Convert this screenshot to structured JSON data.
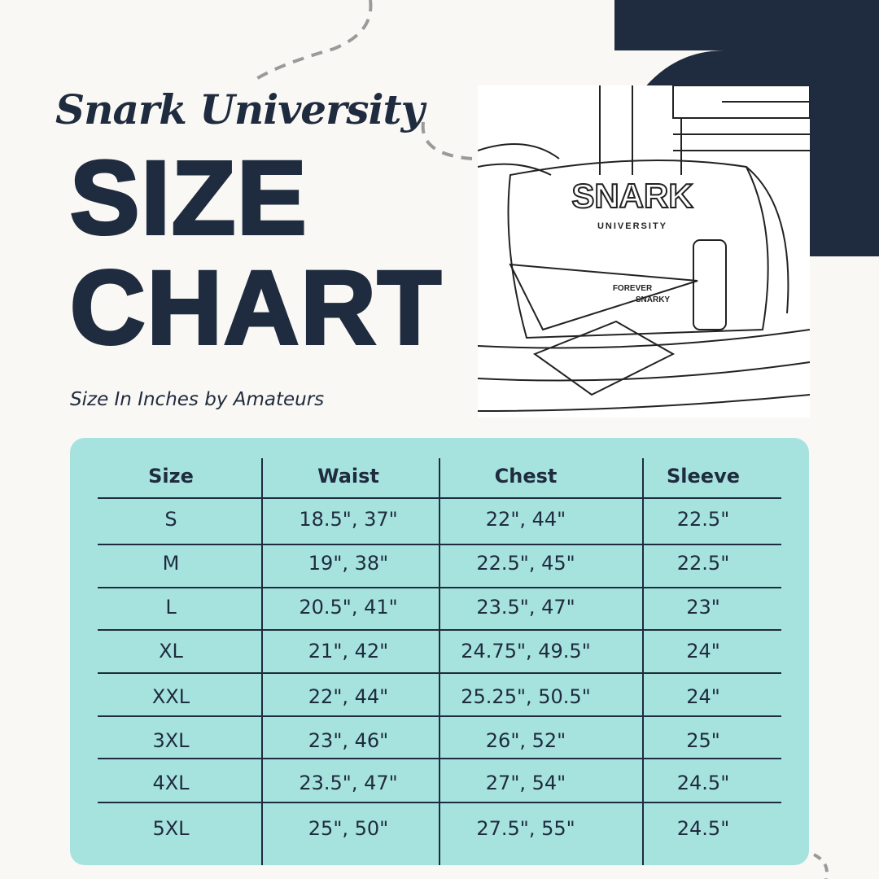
{
  "header": {
    "brand": "Snark University",
    "title_line1": "SIZE",
    "title_line2": "CHART",
    "subtitle": "Size In Inches by Amateurs"
  },
  "illustration": {
    "shirt_line1": "SNARK",
    "shirt_line2": "UNIVERSITY",
    "pennant_line1": "FOREVER",
    "pennant_line2": "SNARKY"
  },
  "table": {
    "columns": [
      "Size",
      "Waist",
      "Chest",
      "Sleeve"
    ],
    "rows": [
      [
        "S",
        "18.5\", 37\"",
        "22\", 44\"",
        "22.5\""
      ],
      [
        "M",
        "19\", 38\"",
        "22.5\", 45\"",
        "22.5\""
      ],
      [
        "L",
        "20.5\", 41\"",
        "23.5\", 47\"",
        "23\""
      ],
      [
        "XL",
        "21\", 42\"",
        "24.75\", 49.5\"",
        "24\""
      ],
      [
        "XXL",
        "22\", 44\"",
        "25.25\", 50.5\"",
        "24\""
      ],
      [
        "3XL",
        "23\", 46\"",
        "26\", 52\"",
        "25\""
      ],
      [
        "4XL",
        "23.5\", 47\"",
        "27\", 54\"",
        "24.5\""
      ],
      [
        "5XL",
        "25\", 50\"",
        "27.5\", 55\"",
        "24.5\""
      ]
    ]
  }
}
